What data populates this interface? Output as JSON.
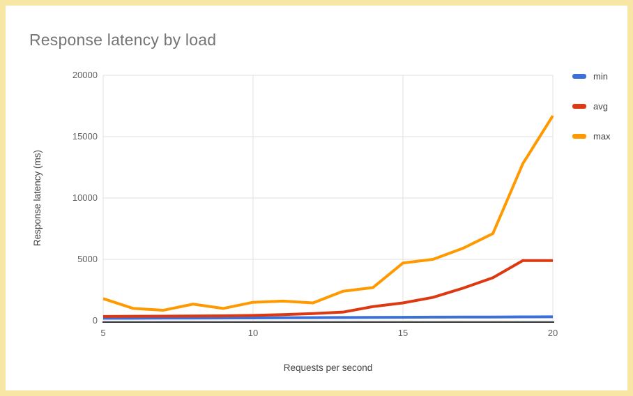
{
  "chart_data": {
    "type": "line",
    "title": "Response latency by load",
    "xlabel": "Requests per second",
    "ylabel": "Response latency (ms)",
    "x": [
      5,
      6,
      7,
      8,
      9,
      10,
      11,
      12,
      13,
      14,
      15,
      16,
      17,
      18,
      19,
      20
    ],
    "series": [
      {
        "name": "min",
        "color": "#3D6FD8",
        "values": [
          200,
          200,
          210,
          210,
          220,
          230,
          240,
          250,
          260,
          270,
          280,
          290,
          300,
          300,
          310,
          320
        ]
      },
      {
        "name": "avg",
        "color": "#DC3912",
        "values": [
          350,
          360,
          370,
          380,
          400,
          430,
          500,
          580,
          700,
          1150,
          1450,
          1900,
          2650,
          3500,
          4900,
          4900
        ]
      },
      {
        "name": "max",
        "color": "#FF9900",
        "values": [
          1800,
          1000,
          850,
          1350,
          1000,
          1500,
          1600,
          1450,
          2400,
          2700,
          4700,
          5000,
          5900,
          7100,
          12800,
          16700
        ]
      }
    ],
    "xlim": [
      5,
      20
    ],
    "ylim": [
      0,
      20000
    ],
    "xticks": [
      5,
      10,
      15,
      20
    ],
    "yticks": [
      0,
      5000,
      10000,
      15000,
      20000
    ],
    "grid": true,
    "legend_position": "right"
  },
  "colors": {
    "card_border": "#F8E7A4",
    "title_text": "#757575",
    "axis_title_text": "#424242",
    "tick_text": "#616161",
    "grid": "#E0E0E0",
    "axis_line": "#333333",
    "background": "#FFFFFF"
  }
}
